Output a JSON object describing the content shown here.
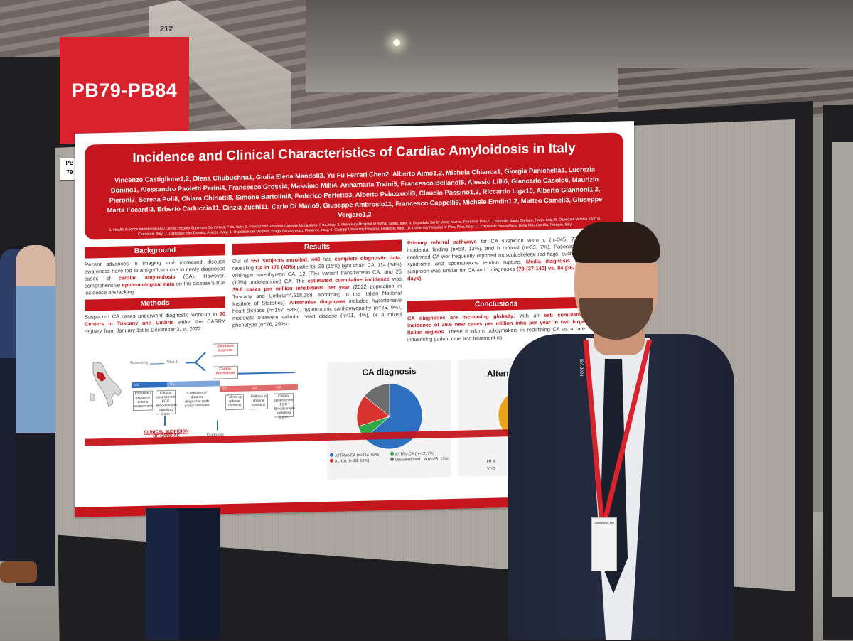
{
  "venue": {
    "section_number": "212"
  },
  "sign": {
    "label": "PB79-PB84",
    "color": "#d8222c"
  },
  "board_tag": {
    "line1": "PB",
    "line2": "79"
  },
  "poster": {
    "accent_color": "#c4161c",
    "title": "Incidence and Clinical Characteristics of Cardiac Amyloidosis in Italy",
    "authors": "Vincenzo Castiglione1,2, Olena Chubuchna1, Giulia Elena Mandoli3, Yu Fu Ferrari Chen2, Alberto Aimo1,2, Michela Chianca1, Giorgia Panichella1, Lucrezia Bonino1, Alessandro Paoletti Perini4, Francesco Grossi4, Massimo Milli4, Annamaria Traini5, Francesco Bellandi5, Alessio Lilli6, Giancarlo Casolo6, Maurizio Pieroni7, Serena Poli8, Chiara Chiriatti8, Simone Bartolini8, Federico Perfetto3, Alberto Palazzuoli3, Claudio Passino1,2, Riccardo Liga10, Alberto Giannoni1,2, Marta Focardi3, Erberto Carluccio11, Cinzia Zuchi11, Carlo Di Mario9, Giuseppe Ambrosio11, Francesco Cappelli9, Michele Emdin1,2, Matteo Cameli3, Giuseppe Vergaro1,2",
    "affiliations": "1. Health Science Interdisciplinary Center, Scuola Superiore Sant'Anna, Pisa, Italy; 2. Fondazione Toscana Gabriele Monasterio, Pisa, Italy; 3. University Hospital of Siena, Siena, Italy; 4. Ospedale Santa Maria Nuova, Florence, Italy; 5. Ospedale Santo Stefano, Prato, Italy; 6. Ospedale Versilia, Lido di Camaiore, Italy; 7. Ospedale San Donato, Arezzo, Italy; 8. Ospedale del Mugello, Borgo San Lorenzo, Florence, Italy; 9. Careggi University Hospital, Florence, Italy; 10. University Hospital of Pisa, Pisa, Italy; 11. Ospedale Santa Maria Della Misericordia, Perugia, Italy",
    "background": {
      "heading": "Background",
      "text_pre": "Recent advances in imaging and increased disease awareness have led to a significant rise in newly diagnosed cases of ",
      "text_hl1": "cardiac amyloidosis",
      "text_mid": " (CA). However, comprehensive ",
      "text_hl2": "epidemiological data",
      "text_post": " on the disease's true incidence are lacking."
    },
    "methods": {
      "heading": "Methods",
      "text_pre": "Suspected CA cases underwent diagnostic work-up in ",
      "text_hl": "20 Centers in Tuscany and Umbria",
      "text_post": " within the CARRY registry, from January 1st to December 31st, 2022."
    },
    "results": {
      "heading": "Results",
      "text_a": "Out of ",
      "hl_a": "551 subjects enrolled",
      "text_b": ", ",
      "hl_b": "448",
      "text_c": " had ",
      "hl_c": "complete diagnostic data",
      "text_d": ", revealing ",
      "hl_d": "CA in 179 (40%)",
      "text_e": " patients: 28 (16%) light chain CA, 114 (64%) wild-type transthyretin CA, 12 (7%) variant transthyretin CA, and 25 (13%) undetermined CA. The ",
      "hl_e": "estimated cumulative incidence",
      "text_f": " was ",
      "hl_f": "39.6 cases per million inhabitants per year",
      "text_g": " (2022 population in Tuscany and Umbria=4,518,388, according to the Italian National Institute of Statistics). ",
      "hl_g": "Alternative diagnoses",
      "text_h": " included hypertensive heart disease (n=157, 58%), hypertrophic cardiomyopathy (n=25, 9%), moderate-to-severe valvular heart disease (n=11, 4%), or a mixed phenotype (n=76, 29%)."
    },
    "referral": {
      "hl_a": "Primary referral pathways",
      "text_a": " for CA suspicion were c (n=345, 77%), incidental finding (n=58, 13%), and h referral (n=33, 7%). Patients with confirmed CA wer frequently reported musculoskeletal red flags, such as c syndrome and spontaneous tendon rupture. ",
      "hl_b": "Media diagnosis",
      "text_b": " from suspicion was similar for CA and t diagnoses ",
      "hl_c": "(73 [37-140] vs. 84 [36-156] days)",
      "text_c": "."
    },
    "conclusions": {
      "heading": "Conclusions",
      "hl_a": "CA diagnoses are increasing globally",
      "text_a": ", with an ",
      "hl_b": "esti cumulative incidence of 39.6 new cases per million inha per year in two large Italian regions",
      "text_b": ". These fi inform policymakers in redefining CA as a rare influencing patient care and treatment co"
    },
    "diagram": {
      "screening": "Screening",
      "visit1": "Visit 1",
      "alt_dx": "Alternative diagnosis",
      "cardiac_amyloidosis": "Cardiac Amyloidosis",
      "v0": "V0",
      "v1": "V1",
      "v2": "V2",
      "v3": "V3",
      "v4": "V4",
      "box1": "Inclusion / exclusion criteria assessment",
      "box2": "Clinical assessment ECG Bloodsample sampling Echo",
      "box3": "Collection of data on diagnostic path and procedures",
      "box4": "Follow-up (phone contact)",
      "box5": "Follow-up (phone contact)",
      "box6": "Clinical assessment ECG Bloodsample sampling Echo",
      "suspicion": "CLINICAL SUSPICION OF CARDIAC AMYLOIDOSIS",
      "diagnosis": "Diagnosis"
    },
    "chart1": {
      "title": "CA diagnosis",
      "legend": [
        {
          "label": "ATTRwt-CA (n=114, 64%)",
          "color": "#2f6fc0"
        },
        {
          "label": "ATTRv-CA (n=12, 7%)",
          "color": "#2fa84a"
        },
        {
          "label": "AL-CA (n=28, 16%)",
          "color": "#d6322f"
        },
        {
          "label": "Undetermined CA (n=25, 13%)",
          "color": "#6e6e6e"
        }
      ]
    },
    "chart2": {
      "title": "Altern",
      "legend_a": "HTN",
      "legend_b": "VHD"
    }
  },
  "chart_data": [
    {
      "type": "pie",
      "title": "CA diagnosis",
      "categories": [
        "ATTRwt-CA",
        "ATTRv-CA",
        "AL-CA",
        "Undetermined CA"
      ],
      "values": [
        114,
        12,
        28,
        25
      ],
      "colors": [
        "#2f6fc0",
        "#2fa84a",
        "#d6322f",
        "#6e6e6e"
      ]
    },
    {
      "type": "pie",
      "title": "Altern",
      "categories": [
        "HTN",
        "VHD"
      ],
      "values": [
        157,
        11
      ],
      "colors": [
        "#e8a318",
        "#7a7a7a"
      ]
    }
  ],
  "presenter": {
    "badge_name": "Castiglione, MD",
    "lanyard": "ISA 2024"
  }
}
